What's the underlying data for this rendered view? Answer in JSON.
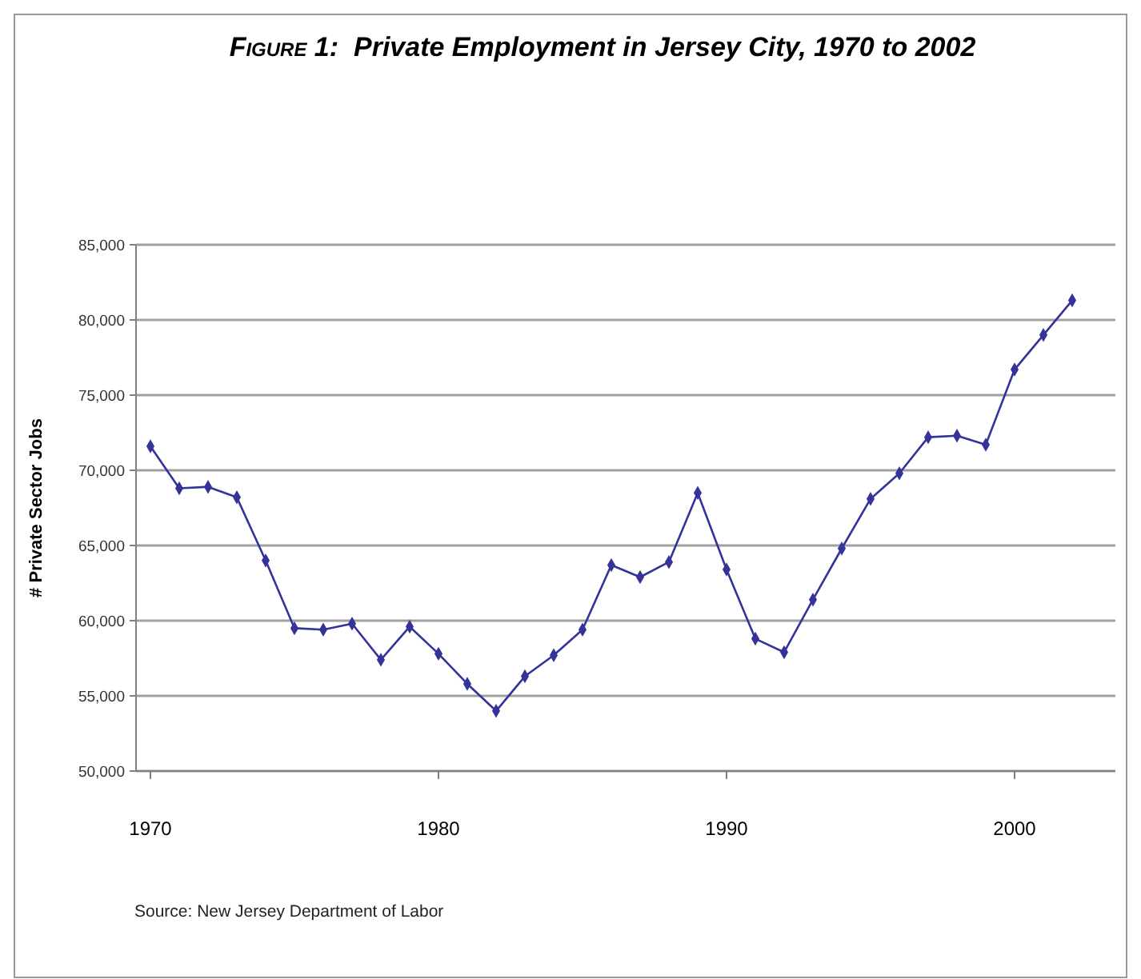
{
  "chart_data": {
    "type": "line",
    "title": "Figure 1:  Private Employment in Jersey City, 1970 to 2002",
    "ylabel": "# Private Sector Jobs",
    "annotations": [
      "Source: New Jersey Department of Labor"
    ],
    "x": [
      1970,
      1971,
      1972,
      1973,
      1974,
      1975,
      1976,
      1977,
      1978,
      1979,
      1980,
      1981,
      1982,
      1983,
      1984,
      1985,
      1986,
      1987,
      1988,
      1989,
      1990,
      1991,
      1992,
      1993,
      1994,
      1995,
      1996,
      1997,
      1998,
      1999,
      2000,
      2001,
      2002
    ],
    "series": [
      {
        "color": "#333399",
        "values": [
          71600,
          68800,
          68900,
          68200,
          64000,
          59500,
          59400,
          59800,
          57400,
          59600,
          57800,
          55800,
          54000,
          56300,
          57700,
          59400,
          63700,
          62900,
          63900,
          68500,
          63400,
          58800,
          57900,
          61400,
          64800,
          68100,
          69800,
          72200,
          72300,
          71700,
          76700,
          79000,
          81300
        ]
      }
    ],
    "xlim": [
      1969.5,
      2003.5
    ],
    "xticks": [
      1970,
      1980,
      1990,
      2000
    ],
    "ylim": [
      50000,
      85000
    ],
    "yticks": [
      {
        "value": 50000,
        "label": "50,000"
      },
      {
        "value": 55000,
        "label": "55,000"
      },
      {
        "value": 60000,
        "label": "60,000"
      },
      {
        "value": 65000,
        "label": "65,000"
      },
      {
        "value": 70000,
        "label": "70,000"
      },
      {
        "value": 75000,
        "label": "75,000"
      },
      {
        "value": 80000,
        "label": "80,000"
      },
      {
        "value": 85000,
        "label": "85,000"
      }
    ],
    "grid": "y",
    "marker": "diamond",
    "line_style": "solid"
  }
}
